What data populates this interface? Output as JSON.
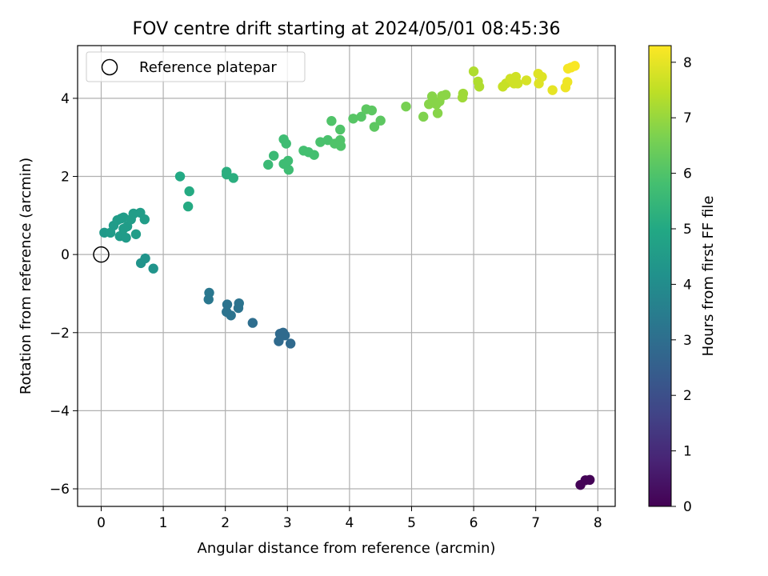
{
  "chart_data": {
    "type": "scatter",
    "title": "FOV centre drift starting at 2024/05/01 08:45:36",
    "xlabel": "Angular distance from reference (arcmin)",
    "ylabel": "Rotation from reference (arcmin)",
    "xlim": [
      -0.38,
      8.28
    ],
    "ylim": [
      -6.45,
      5.35
    ],
    "xticks": [
      0,
      1,
      2,
      3,
      4,
      5,
      6,
      7,
      8
    ],
    "yticks": [
      -6,
      -4,
      -2,
      0,
      2,
      4
    ],
    "xtick_labels": [
      "0",
      "1",
      "2",
      "3",
      "4",
      "5",
      "6",
      "7",
      "8"
    ],
    "ytick_labels": [
      "−6",
      "−4",
      "−2",
      "0",
      "2",
      "4"
    ],
    "grid": true,
    "legend": {
      "position": "upper-left",
      "entries": [
        "Reference platepar"
      ]
    },
    "colorbar": {
      "label": "Hours from first FF file",
      "colormap": "viridis",
      "range": [
        0,
        8.3
      ],
      "ticks": [
        0,
        1,
        2,
        3,
        4,
        5,
        6,
        7,
        8
      ],
      "tick_labels": [
        "0",
        "1",
        "2",
        "3",
        "4",
        "5",
        "6",
        "7",
        "8"
      ]
    },
    "reference_point": {
      "x": 0,
      "y": 0,
      "marker": "open-circle"
    },
    "series": [
      {
        "x": [
          7.72,
          7.8,
          7.87,
          2.93,
          2.96,
          3.05,
          2.88,
          2.86,
          2.44,
          2.09,
          2.02,
          2.21,
          2.03,
          2.22,
          1.73,
          1.74,
          0.84,
          0.64,
          0.71,
          0.05,
          0.15,
          0.2,
          0.26,
          0.32,
          0.36,
          0.3,
          0.4,
          0.42,
          0.48,
          0.52,
          0.56,
          0.63,
          0.7,
          0.52,
          0.36,
          1.27,
          1.42,
          1.4,
          2.02,
          2.02,
          2.13,
          2.69,
          2.78,
          2.94,
          2.98,
          3.01,
          2.94,
          3.02,
          3.26,
          3.34,
          3.43,
          3.53,
          3.65,
          3.71,
          3.76,
          3.85,
          3.86,
          3.85,
          4.06,
          4.19,
          4.27,
          4.36,
          4.4,
          4.5,
          4.91,
          5.19,
          5.28,
          5.33,
          5.4,
          5.42,
          5.45,
          5.49,
          5.55,
          5.82,
          5.83,
          6.0,
          6.07,
          6.09,
          6.47,
          6.52,
          6.59,
          6.68,
          6.65,
          6.71,
          6.85,
          7.05,
          7.1,
          7.04,
          7.27,
          7.48,
          7.51,
          7.52,
          7.57,
          7.63
        ],
        "y": [
          -5.9,
          -5.78,
          -5.77,
          -2.0,
          -2.07,
          -2.28,
          -2.03,
          -2.22,
          -1.75,
          -1.56,
          -1.47,
          -1.37,
          -1.28,
          -1.25,
          -1.15,
          -0.98,
          -0.36,
          -0.22,
          -0.1,
          0.56,
          0.56,
          0.74,
          0.88,
          0.92,
          0.95,
          0.47,
          0.43,
          0.72,
          0.9,
          1.05,
          0.52,
          1.07,
          0.9,
          1.04,
          0.66,
          2.0,
          1.62,
          1.23,
          2.12,
          2.05,
          1.96,
          2.3,
          2.53,
          2.95,
          2.84,
          2.4,
          2.32,
          2.17,
          2.66,
          2.62,
          2.55,
          2.88,
          2.93,
          3.42,
          2.84,
          3.2,
          2.78,
          2.93,
          3.48,
          3.53,
          3.72,
          3.69,
          3.27,
          3.43,
          3.79,
          3.53,
          3.85,
          4.05,
          3.85,
          3.62,
          3.92,
          4.06,
          4.09,
          4.02,
          4.12,
          4.69,
          4.43,
          4.3,
          4.3,
          4.38,
          4.5,
          4.55,
          4.38,
          4.38,
          4.46,
          4.38,
          4.55,
          4.63,
          4.21,
          4.28,
          4.42,
          4.76,
          4.79,
          4.83
        ],
        "c": [
          0.05,
          0.05,
          0.05,
          2.85,
          2.85,
          2.85,
          2.85,
          2.85,
          3.0,
          3.15,
          3.15,
          3.15,
          3.15,
          3.15,
          3.3,
          3.3,
          4.25,
          4.25,
          4.25,
          4.45,
          4.5,
          4.5,
          4.55,
          4.55,
          4.55,
          4.5,
          4.5,
          4.55,
          4.6,
          4.6,
          4.6,
          4.6,
          4.6,
          4.6,
          4.55,
          5.0,
          5.05,
          5.05,
          5.2,
          5.2,
          5.2,
          5.6,
          5.6,
          5.7,
          5.7,
          5.7,
          5.7,
          5.7,
          5.8,
          5.8,
          5.8,
          5.9,
          5.9,
          6.0,
          6.0,
          6.0,
          6.0,
          6.0,
          6.1,
          6.1,
          6.2,
          6.2,
          6.2,
          6.2,
          6.6,
          6.7,
          6.8,
          6.8,
          6.8,
          6.8,
          6.8,
          6.85,
          6.85,
          7.1,
          7.1,
          7.3,
          7.3,
          7.3,
          7.6,
          7.6,
          7.7,
          7.7,
          7.7,
          7.7,
          7.8,
          7.9,
          7.9,
          7.9,
          8.0,
          8.1,
          8.1,
          8.2,
          8.2,
          8.25
        ]
      }
    ]
  }
}
